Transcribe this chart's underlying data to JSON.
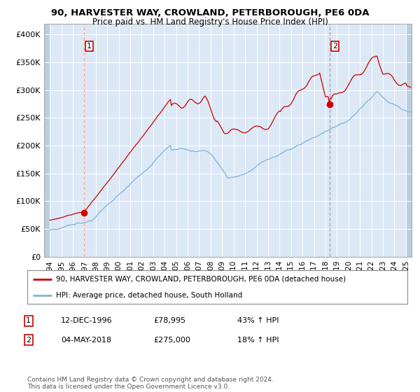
{
  "title1": "90, HARVESTER WAY, CROWLAND, PETERBOROUGH, PE6 0DA",
  "title2": "Price paid vs. HM Land Registry's House Price Index (HPI)",
  "background_color": "#ffffff",
  "plot_bg_color": "#dce8f5",
  "hatch_color": "#b8cfe0",
  "grid_color": "#ffffff",
  "red_line_color": "#cc0000",
  "blue_line_color": "#7fb3d9",
  "vline1_color": "#ffaaaa",
  "vline2_color": "#aaaaaa",
  "vline1_x": 1996.96,
  "vline2_x": 2018.37,
  "dot1_x": 1996.96,
  "dot1_y": 78995,
  "dot2_x": 2018.37,
  "dot2_y": 275000,
  "ylim_min": 0,
  "ylim_max": 420000,
  "xlim_min": 1993.5,
  "xlim_max": 2025.5,
  "legend_red": "90, HARVESTER WAY, CROWLAND, PETERBOROUGH, PE6 0DA (detached house)",
  "legend_blue": "HPI: Average price, detached house, South Holland",
  "note1_num": "1",
  "note1_date": "12-DEC-1996",
  "note1_price": "£78,995",
  "note1_hpi": "43% ↑ HPI",
  "note2_num": "2",
  "note2_date": "04-MAY-2018",
  "note2_price": "£275,000",
  "note2_hpi": "18% ↑ HPI",
  "footer": "Contains HM Land Registry data © Crown copyright and database right 2024.\nThis data is licensed under the Open Government Licence v3.0.",
  "yticks": [
    0,
    50000,
    100000,
    150000,
    200000,
    250000,
    300000,
    350000,
    400000
  ],
  "ytick_labels": [
    "£0",
    "£50K",
    "£100K",
    "£150K",
    "£200K",
    "£250K",
    "£300K",
    "£350K",
    "£400K"
  ],
  "xticks": [
    1994,
    1995,
    1996,
    1997,
    1998,
    1999,
    2000,
    2001,
    2002,
    2003,
    2004,
    2005,
    2006,
    2007,
    2008,
    2009,
    2010,
    2011,
    2012,
    2013,
    2014,
    2015,
    2016,
    2017,
    2018,
    2019,
    2020,
    2021,
    2022,
    2023,
    2024,
    2025
  ]
}
